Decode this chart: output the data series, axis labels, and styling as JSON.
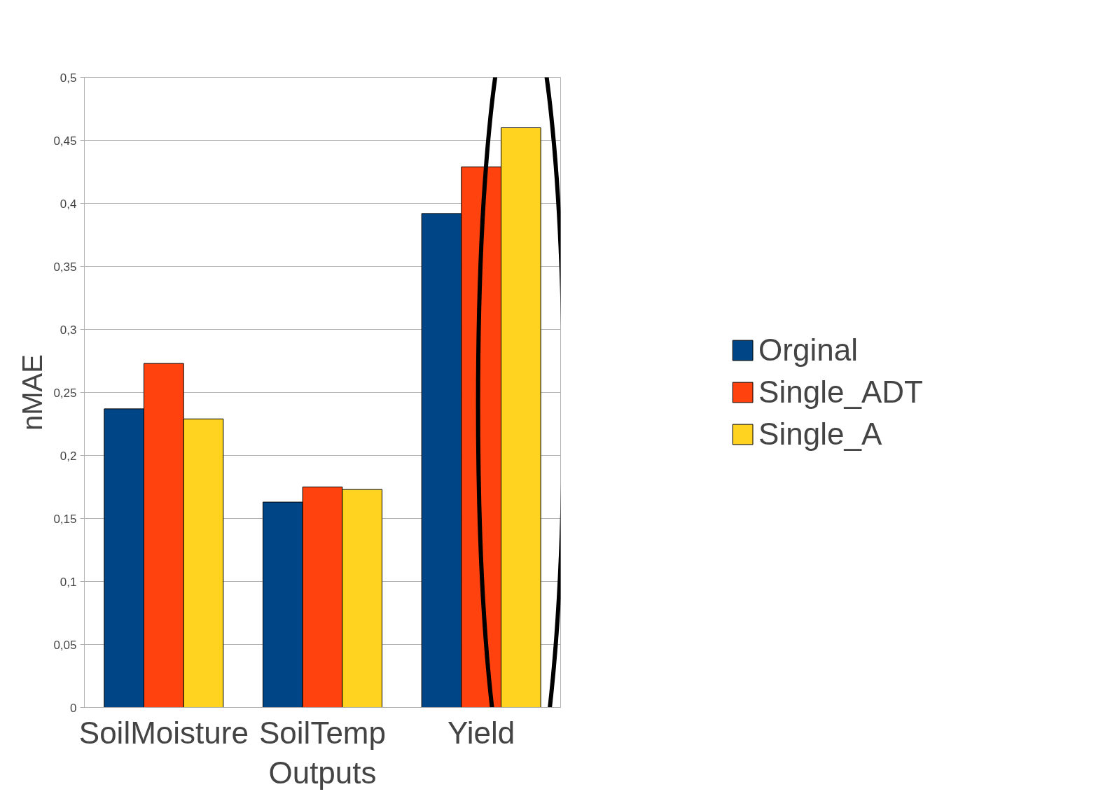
{
  "chart_data": {
    "type": "bar",
    "xlabel": "Outputs",
    "ylabel": "nMAE",
    "categories": [
      "SoilMoisture",
      "SoilTemp",
      "Yield"
    ],
    "series": [
      {
        "name": "Orginal",
        "color": "#004586",
        "values": [
          0.237,
          0.163,
          0.392
        ]
      },
      {
        "name": "Single_ADT",
        "color": "#ff420e",
        "values": [
          0.273,
          0.175,
          0.429
        ]
      },
      {
        "name": "Single_A",
        "color": "#ffd320",
        "values": [
          0.229,
          0.173,
          0.46
        ]
      }
    ],
    "ylim": [
      0,
      0.5
    ],
    "yticks": [
      0,
      {
        "value": 0.05,
        "label": "0,05"
      },
      {
        "value": 0.1,
        "label": "0,1"
      },
      {
        "value": 0.15,
        "label": "0,15"
      },
      {
        "value": 0.2,
        "label": "0,2"
      },
      {
        "value": 0.25,
        "label": "0,25"
      },
      {
        "value": 0.3,
        "label": "0,3"
      },
      {
        "value": 0.35,
        "label": "0,35"
      },
      {
        "value": 0.4,
        "label": "0,4"
      },
      {
        "value": 0.45,
        "label": "0,45"
      },
      {
        "value": 0.5,
        "label": "0,5"
      }
    ],
    "grid": "y",
    "legend": "right"
  }
}
